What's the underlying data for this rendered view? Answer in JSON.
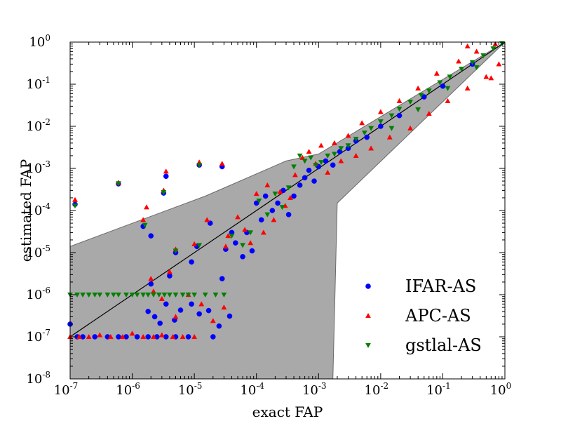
{
  "chart_data": {
    "type": "scatter",
    "xscale": "log",
    "yscale": "log",
    "xlim": [
      1e-07,
      1
    ],
    "ylim": [
      1e-08,
      1
    ],
    "xlabel": "exact FAP",
    "ylabel": "estimated FAP",
    "x_ticks": [
      {
        "base": "10",
        "exp": "-7"
      },
      {
        "base": "10",
        "exp": "-6"
      },
      {
        "base": "10",
        "exp": "-5"
      },
      {
        "base": "10",
        "exp": "-4"
      },
      {
        "base": "10",
        "exp": "-3"
      },
      {
        "base": "10",
        "exp": "-2"
      },
      {
        "base": "10",
        "exp": "-1"
      },
      {
        "base": "10",
        "exp": "0"
      }
    ],
    "y_ticks": [
      {
        "base": "10",
        "exp": "-8"
      },
      {
        "base": "10",
        "exp": "-7"
      },
      {
        "base": "10",
        "exp": "-6"
      },
      {
        "base": "10",
        "exp": "-5"
      },
      {
        "base": "10",
        "exp": "-4"
      },
      {
        "base": "10",
        "exp": "-3"
      },
      {
        "base": "10",
        "exp": "-2"
      },
      {
        "base": "10",
        "exp": "-1"
      },
      {
        "base": "10",
        "exp": "0"
      }
    ],
    "legend_position": "bottom-right",
    "reference_line": {
      "x": [
        1e-07,
        1
      ],
      "y": [
        1e-07,
        1
      ],
      "color": "#000000"
    },
    "confidence_band": {
      "color": "#a9a9a9",
      "upper": [
        [
          1e-07,
          1.4e-05
        ],
        [
          1.5e-05,
          0.00022
        ],
        [
          0.0003,
          0.0015
        ],
        [
          0.001,
          0.0022
        ],
        [
          1,
          1
        ]
      ],
      "lower": [
        [
          1,
          1
        ],
        [
          0.002,
          0.00015
        ],
        [
          0.0017,
          1e-08
        ],
        [
          1e-07,
          1e-08
        ]
      ]
    },
    "series": [
      {
        "name": "IFAR-AS",
        "marker": "circle",
        "color": "#0000ff",
        "points": [
          [
            1.2e-07,
            0.00014
          ],
          [
            6e-07,
            0.00043
          ],
          [
            3.5e-06,
            0.00065
          ],
          [
            3.2e-06,
            0.00026
          ],
          [
            1.2e-05,
            0.0012
          ],
          [
            2.8e-05,
            0.0011
          ],
          [
            1.5e-06,
            4.2e-05
          ],
          [
            2e-06,
            2.5e-05
          ],
          [
            1.1e-05,
            1.4e-05
          ],
          [
            1.8e-05,
            5e-05
          ],
          [
            5e-06,
            1e-05
          ],
          [
            9e-06,
            6e-06
          ],
          [
            3.2e-05,
            1.2e-05
          ],
          [
            2e-06,
            1.8e-06
          ],
          [
            4e-06,
            2.8e-06
          ],
          [
            2.8e-05,
            2.4e-06
          ],
          [
            1e-07,
            2e-07
          ],
          [
            1.3e-07,
            1e-07
          ],
          [
            1.6e-07,
            1e-07
          ],
          [
            2.5e-07,
            1e-07
          ],
          [
            4e-07,
            1e-07
          ],
          [
            6e-07,
            1e-07
          ],
          [
            8e-07,
            1e-07
          ],
          [
            1.2e-06,
            1e-07
          ],
          [
            1.8e-06,
            1e-07
          ],
          [
            2.5e-06,
            1e-07
          ],
          [
            3.5e-06,
            1e-07
          ],
          [
            5e-06,
            1e-07
          ],
          [
            8e-06,
            1e-07
          ],
          [
            2e-05,
            1e-07
          ],
          [
            1.8e-06,
            4e-07
          ],
          [
            2.3e-06,
            3e-07
          ],
          [
            2.8e-06,
            2.1e-07
          ],
          [
            3.5e-06,
            6e-07
          ],
          [
            4.8e-06,
            2.5e-07
          ],
          [
            6e-06,
            4.3e-07
          ],
          [
            9e-06,
            6e-07
          ],
          [
            1.2e-05,
            3.5e-07
          ],
          [
            1.7e-05,
            4.2e-07
          ],
          [
            2.5e-05,
            1.8e-07
          ],
          [
            3.7e-05,
            3.1e-07
          ],
          [
            4e-05,
            3e-05
          ],
          [
            4.6e-05,
            1.7e-05
          ],
          [
            6e-05,
            8e-06
          ],
          [
            7e-05,
            3e-05
          ],
          [
            8.5e-05,
            1.1e-05
          ],
          [
            0.0001,
            0.00015
          ],
          [
            0.00012,
            6e-05
          ],
          [
            0.00014,
            0.00022
          ],
          [
            0.00018,
            0.0001
          ],
          [
            0.00022,
            0.00015
          ],
          [
            0.00027,
            0.0003
          ],
          [
            0.00033,
            8e-05
          ],
          [
            0.0004,
            0.00022
          ],
          [
            0.0005,
            0.0004
          ],
          [
            0.0006,
            0.0006
          ],
          [
            0.0007,
            0.0009
          ],
          [
            0.00085,
            0.0005
          ],
          [
            0.001,
            0.0011
          ],
          [
            0.0013,
            0.0015
          ],
          [
            0.0017,
            0.0012
          ],
          [
            0.0022,
            0.0025
          ],
          [
            0.003,
            0.003
          ],
          [
            0.004,
            0.0045
          ],
          [
            0.006,
            0.0055
          ],
          [
            0.01,
            0.01
          ],
          [
            0.02,
            0.018
          ],
          [
            0.05,
            0.05
          ],
          [
            0.1,
            0.09
          ],
          [
            0.3,
            0.3
          ]
        ]
      },
      {
        "name": "APC-AS",
        "marker": "triangle-up",
        "color": "#ff0000",
        "points": [
          [
            1.2e-07,
            0.00018
          ],
          [
            6e-07,
            0.00046
          ],
          [
            1.5e-06,
            6e-05
          ],
          [
            1.7e-06,
            0.00012
          ],
          [
            3.5e-06,
            0.00085
          ],
          [
            3.2e-06,
            0.0003
          ],
          [
            1.2e-05,
            0.0014
          ],
          [
            2.8e-05,
            0.0013
          ],
          [
            5e-06,
            1.2e-05
          ],
          [
            1e-05,
            1.6e-05
          ],
          [
            3.2e-05,
            1.4e-05
          ],
          [
            1.6e-05,
            6e-05
          ],
          [
            2e-06,
            2.4e-06
          ],
          [
            4e-06,
            3.5e-06
          ],
          [
            1e-07,
            1e-07
          ],
          [
            1.4e-07,
            1e-07
          ],
          [
            2e-07,
            1e-07
          ],
          [
            3e-07,
            1.1e-07
          ],
          [
            4.5e-07,
            1e-07
          ],
          [
            7e-07,
            1e-07
          ],
          [
            1e-06,
            1.2e-07
          ],
          [
            1.5e-06,
            1e-07
          ],
          [
            2.2e-06,
            1e-07
          ],
          [
            3e-06,
            1.1e-07
          ],
          [
            4.5e-06,
            1e-07
          ],
          [
            6.5e-06,
            1e-07
          ],
          [
            1e-05,
            1e-07
          ],
          [
            2.2e-06,
            1.2e-06
          ],
          [
            3e-06,
            8e-07
          ],
          [
            5e-06,
            3e-07
          ],
          [
            8e-06,
            1e-06
          ],
          [
            1.3e-05,
            6e-07
          ],
          [
            2e-05,
            2.4e-07
          ],
          [
            3e-05,
            5e-07
          ],
          [
            3.5e-05,
            2.5e-05
          ],
          [
            5e-05,
            7e-05
          ],
          [
            6.5e-05,
            3.5e-05
          ],
          [
            8e-05,
            1.7e-05
          ],
          [
            0.0001,
            0.00025
          ],
          [
            0.00013,
            3e-05
          ],
          [
            0.00015,
            0.0004
          ],
          [
            0.00019,
            6e-05
          ],
          [
            0.00024,
            0.00028
          ],
          [
            0.00029,
            0.00013
          ],
          [
            0.00035,
            0.0002
          ],
          [
            0.00042,
            0.0007
          ],
          [
            0.00055,
            0.0018
          ],
          [
            0.0007,
            0.0025
          ],
          [
            0.0009,
            0.0013
          ],
          [
            0.0011,
            0.0035
          ],
          [
            0.0014,
            0.0008
          ],
          [
            0.0018,
            0.004
          ],
          [
            0.0023,
            0.0015
          ],
          [
            0.003,
            0.006
          ],
          [
            0.004,
            0.002
          ],
          [
            0.005,
            0.012
          ],
          [
            0.007,
            0.003
          ],
          [
            0.01,
            0.022
          ],
          [
            0.014,
            0.0055
          ],
          [
            0.02,
            0.04
          ],
          [
            0.03,
            0.009
          ],
          [
            0.04,
            0.08
          ],
          [
            0.06,
            0.02
          ],
          [
            0.08,
            0.18
          ],
          [
            0.12,
            0.04
          ],
          [
            0.18,
            0.35
          ],
          [
            0.25,
            0.08
          ],
          [
            0.35,
            0.6
          ],
          [
            0.5,
            0.15
          ],
          [
            0.7,
            0.9
          ],
          [
            0.8,
            0.3
          ],
          [
            0.25,
            0.8
          ],
          [
            0.6,
            0.14
          ]
        ]
      },
      {
        "name": "gstlal-AS",
        "marker": "triangle-down",
        "color": "#008000",
        "points": [
          [
            1.2e-07,
            0.00013
          ],
          [
            6e-07,
            0.00044
          ],
          [
            3.2e-06,
            0.00027
          ],
          [
            1.2e-05,
            0.0012
          ],
          [
            1.6e-06,
            4.5e-05
          ],
          [
            5e-06,
            1.1e-05
          ],
          [
            1.2e-05,
            1.5e-05
          ],
          [
            1e-07,
            1e-06
          ],
          [
            1.3e-07,
            1e-06
          ],
          [
            1.6e-07,
            1e-06
          ],
          [
            2e-07,
            1e-06
          ],
          [
            2.5e-07,
            1e-06
          ],
          [
            3e-07,
            1e-06
          ],
          [
            4e-07,
            1e-06
          ],
          [
            5e-07,
            1e-06
          ],
          [
            6e-07,
            1e-06
          ],
          [
            8e-07,
            1e-06
          ],
          [
            1e-06,
            1e-06
          ],
          [
            1.2e-06,
            1e-06
          ],
          [
            1.5e-06,
            1e-06
          ],
          [
            1.8e-06,
            1e-06
          ],
          [
            2.2e-06,
            1e-06
          ],
          [
            2.7e-06,
            1e-06
          ],
          [
            3.3e-06,
            1e-06
          ],
          [
            4e-06,
            1e-06
          ],
          [
            5e-06,
            1e-06
          ],
          [
            6.5e-06,
            1e-06
          ],
          [
            8e-06,
            1e-06
          ],
          [
            1e-05,
            1e-06
          ],
          [
            1.5e-05,
            1e-06
          ],
          [
            2.2e-05,
            1e-06
          ],
          [
            3e-05,
            1e-06
          ],
          [
            4e-05,
            2.5e-05
          ],
          [
            6e-05,
            1.5e-05
          ],
          [
            8e-05,
            3e-05
          ],
          [
            0.00011,
            0.00017
          ],
          [
            0.00015,
            8e-05
          ],
          [
            0.0002,
            0.00025
          ],
          [
            0.00026,
            0.00012
          ],
          [
            0.00033,
            0.00035
          ],
          [
            0.0004,
            0.0011
          ],
          [
            0.0005,
            0.002
          ],
          [
            0.0006,
            0.0015
          ],
          [
            0.00075,
            0.0018
          ],
          [
            0.0009,
            0.0012
          ],
          [
            0.0011,
            0.0014
          ],
          [
            0.0014,
            0.002
          ],
          [
            0.0018,
            0.0022
          ],
          [
            0.0023,
            0.003
          ],
          [
            0.003,
            0.0035
          ],
          [
            0.004,
            0.005
          ],
          [
            0.0055,
            0.007
          ],
          [
            0.007,
            0.009
          ],
          [
            0.01,
            0.013
          ],
          [
            0.015,
            0.018
          ],
          [
            0.02,
            0.026
          ],
          [
            0.03,
            0.038
          ],
          [
            0.045,
            0.055
          ],
          [
            0.06,
            0.07
          ],
          [
            0.09,
            0.11
          ],
          [
            0.13,
            0.15
          ],
          [
            0.2,
            0.23
          ],
          [
            0.3,
            0.33
          ],
          [
            0.45,
            0.48
          ],
          [
            0.65,
            0.7
          ],
          [
            0.9,
            0.93
          ],
          [
            0.015,
            0.009
          ],
          [
            0.04,
            0.025
          ],
          [
            0.12,
            0.08
          ],
          [
            0.35,
            0.25
          ]
        ]
      }
    ]
  }
}
